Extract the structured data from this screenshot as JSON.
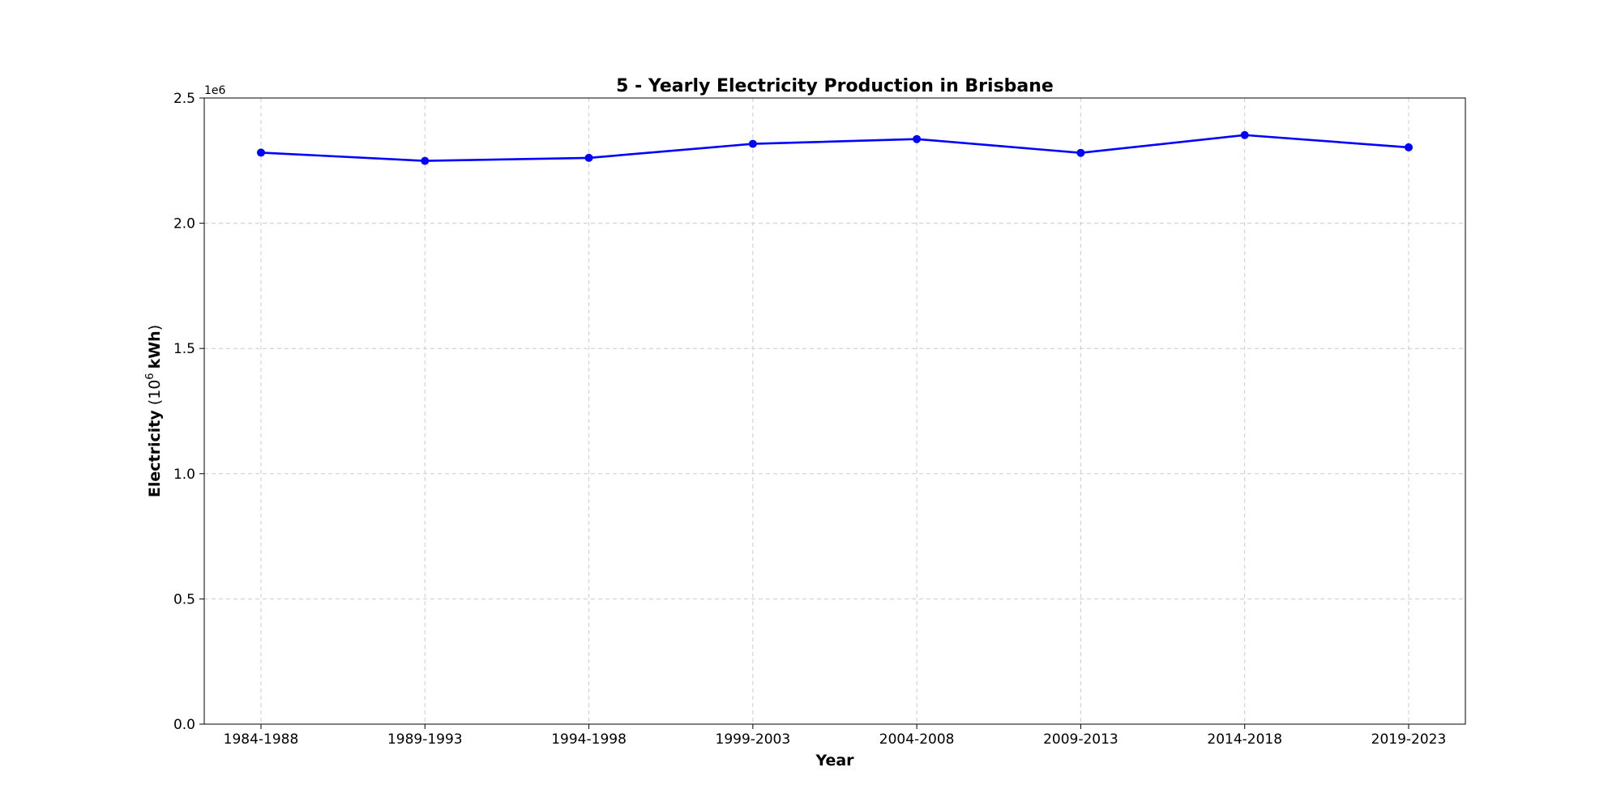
{
  "chart_data": {
    "type": "line",
    "title": "5 - Yearly Electricity Production in Brisbane",
    "xlabel": "Year",
    "ylabel": "Electricity",
    "ylabel_unit": "kWh",
    "ylabel_prefix": "(10",
    "ylabel_exponent": "6",
    "y_offset_label": "1e6",
    "categories": [
      "1984-1988",
      "1989-1993",
      "1994-1998",
      "1999-2003",
      "2004-2008",
      "2009-2013",
      "2014-2018",
      "2019-2023"
    ],
    "series": [
      {
        "values": [
          2282000,
          2249000,
          2261000,
          2317000,
          2336000,
          2281000,
          2352000,
          2303000
        ],
        "color": "#0000ff",
        "marker": "circle"
      }
    ],
    "ylim": [
      0,
      2500000
    ],
    "yticks": [
      0,
      500000,
      1000000,
      1500000,
      2000000,
      2500000
    ],
    "ytick_labels": [
      "0.0",
      "0.5",
      "1.0",
      "1.5",
      "2.0",
      "2.5"
    ],
    "grid": true
  }
}
